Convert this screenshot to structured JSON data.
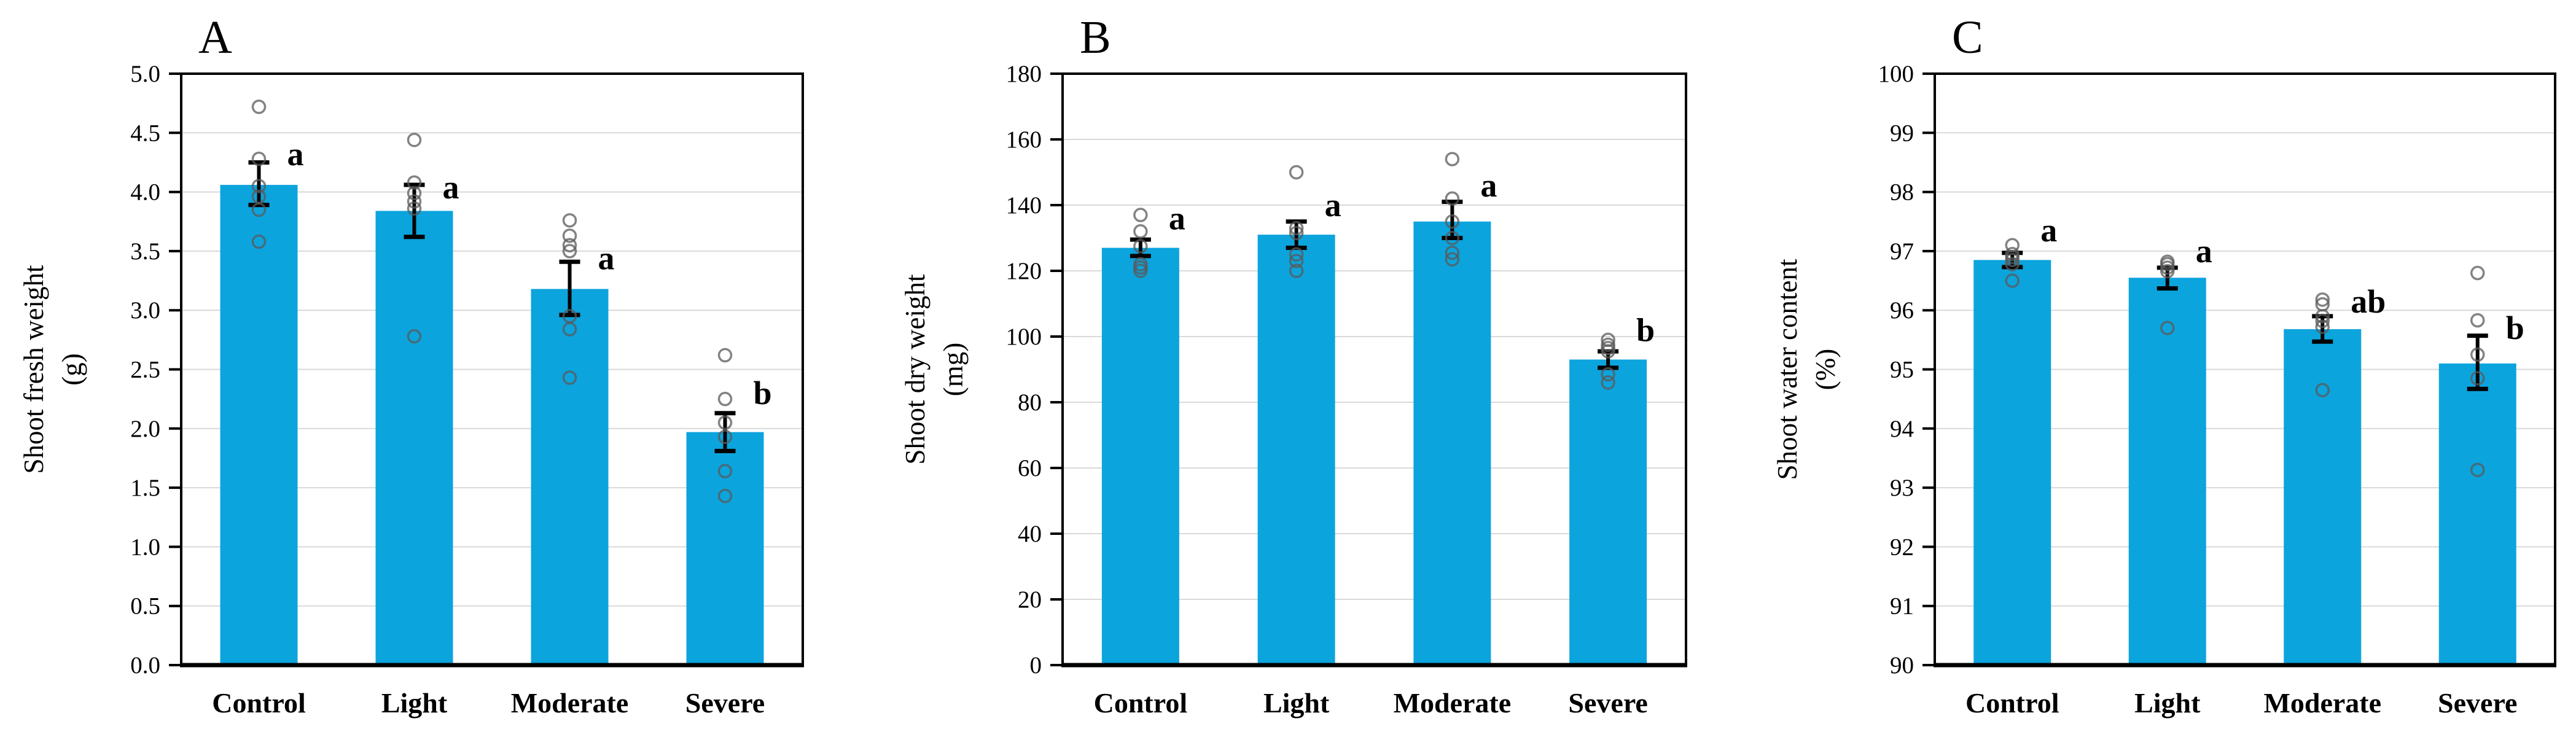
{
  "figure": {
    "background": "#ffffff",
    "colors": {
      "bar_fill": "#0ca4dd",
      "gridline": "#d9d9d9",
      "axis_line": "#000000",
      "point_stroke": "#595959",
      "error_bar": "#000000",
      "text": "#000000"
    }
  },
  "chart_data": [
    {
      "type": "bar",
      "panel_label": "A",
      "ylabel": "Shoot fresh weight",
      "unit_label": "(g)",
      "ylim": [
        0,
        5
      ],
      "ytick_labels": [
        "0.0",
        "0.5",
        "1.0",
        "1.5",
        "2.0",
        "2.5",
        "3.0",
        "3.5",
        "4.0",
        "4.5",
        "5.0"
      ],
      "grid": true,
      "categories": [
        "Control",
        "Light",
        "Moderate",
        "Severe"
      ],
      "groups": [
        {
          "category": "Control",
          "mean": 4.06,
          "err_low": 3.89,
          "err_high": 4.25,
          "points": [
            4.72,
            4.28,
            4.05,
            3.96,
            3.85,
            3.58
          ],
          "letter": "a",
          "letter_v": 4.32
        },
        {
          "category": "Light",
          "mean": 3.84,
          "err_low": 3.62,
          "err_high": 4.06,
          "points": [
            4.44,
            4.08,
            3.99,
            3.92,
            3.86,
            2.78
          ],
          "letter": "a",
          "letter_v": 4.04
        },
        {
          "category": "Moderate",
          "mean": 3.18,
          "err_low": 2.96,
          "err_high": 3.41,
          "points": [
            3.76,
            3.63,
            3.55,
            3.5,
            2.95,
            2.84,
            2.43
          ],
          "letter": "a",
          "letter_v": 3.44
        },
        {
          "category": "Severe",
          "mean": 1.97,
          "err_low": 1.81,
          "err_high": 2.13,
          "points": [
            2.62,
            2.25,
            2.05,
            1.93,
            1.64,
            1.43
          ],
          "letter": "b",
          "letter_v": 2.3
        }
      ]
    },
    {
      "type": "bar",
      "panel_label": "B",
      "ylabel": "Shoot dry weight",
      "unit_label": "(mg)",
      "ylim": [
        0,
        180
      ],
      "ytick_labels": [
        "0",
        "20",
        "40",
        "60",
        "80",
        "100",
        "120",
        "140",
        "160",
        "180"
      ],
      "grid": true,
      "categories": [
        "Control",
        "Light",
        "Moderate",
        "Severe"
      ],
      "groups": [
        {
          "category": "Control",
          "mean": 127,
          "err_low": 124.5,
          "err_high": 129.5,
          "points": [
            137,
            132,
            127.5,
            122,
            121,
            120
          ],
          "letter": "a",
          "letter_v": 136
        },
        {
          "category": "Light",
          "mean": 131,
          "err_low": 127.0,
          "err_high": 135.0,
          "points": [
            150,
            133,
            131.5,
            125,
            123,
            120
          ],
          "letter": "a",
          "letter_v": 140
        },
        {
          "category": "Moderate",
          "mean": 135,
          "err_low": 130.0,
          "err_high": 141.0,
          "points": [
            154,
            142,
            135,
            130,
            125.5,
            123.5
          ],
          "letter": "a",
          "letter_v": 146
        },
        {
          "category": "Severe",
          "mean": 93,
          "err_low": 90.5,
          "err_high": 95.5,
          "points": [
            99,
            97.5,
            96.5,
            95.5,
            88.5,
            86
          ],
          "letter": "b",
          "letter_v": 102
        }
      ]
    },
    {
      "type": "bar",
      "panel_label": "C",
      "ylabel": "Shoot water content",
      "unit_label": "(%)",
      "ylim": [
        90,
        100
      ],
      "ytick_labels": [
        "90",
        "91",
        "92",
        "93",
        "94",
        "95",
        "96",
        "97",
        "98",
        "99",
        "100"
      ],
      "grid": true,
      "categories": [
        "Control",
        "Light",
        "Moderate",
        "Severe"
      ],
      "groups": [
        {
          "category": "Control",
          "mean": 96.85,
          "err_low": 96.73,
          "err_high": 96.97,
          "points": [
            97.1,
            96.95,
            96.9,
            96.85,
            96.78,
            96.5
          ],
          "letter": "a",
          "letter_v": 97.35
        },
        {
          "category": "Light",
          "mean": 96.55,
          "err_low": 96.37,
          "err_high": 96.72,
          "points": [
            96.82,
            96.78,
            96.72,
            96.66,
            95.7
          ],
          "letter": "a",
          "letter_v": 97.0
        },
        {
          "category": "Moderate",
          "mean": 95.68,
          "err_low": 95.47,
          "err_high": 95.9,
          "points": [
            96.18,
            96.1,
            95.9,
            95.82,
            95.72,
            94.65
          ],
          "letter": "ab",
          "letter_v": 96.15
        },
        {
          "category": "Severe",
          "mean": 95.1,
          "err_low": 94.67,
          "err_high": 95.57,
          "points": [
            96.63,
            95.83,
            95.25,
            94.85,
            93.3
          ],
          "letter": "b",
          "letter_v": 95.7
        }
      ]
    }
  ]
}
